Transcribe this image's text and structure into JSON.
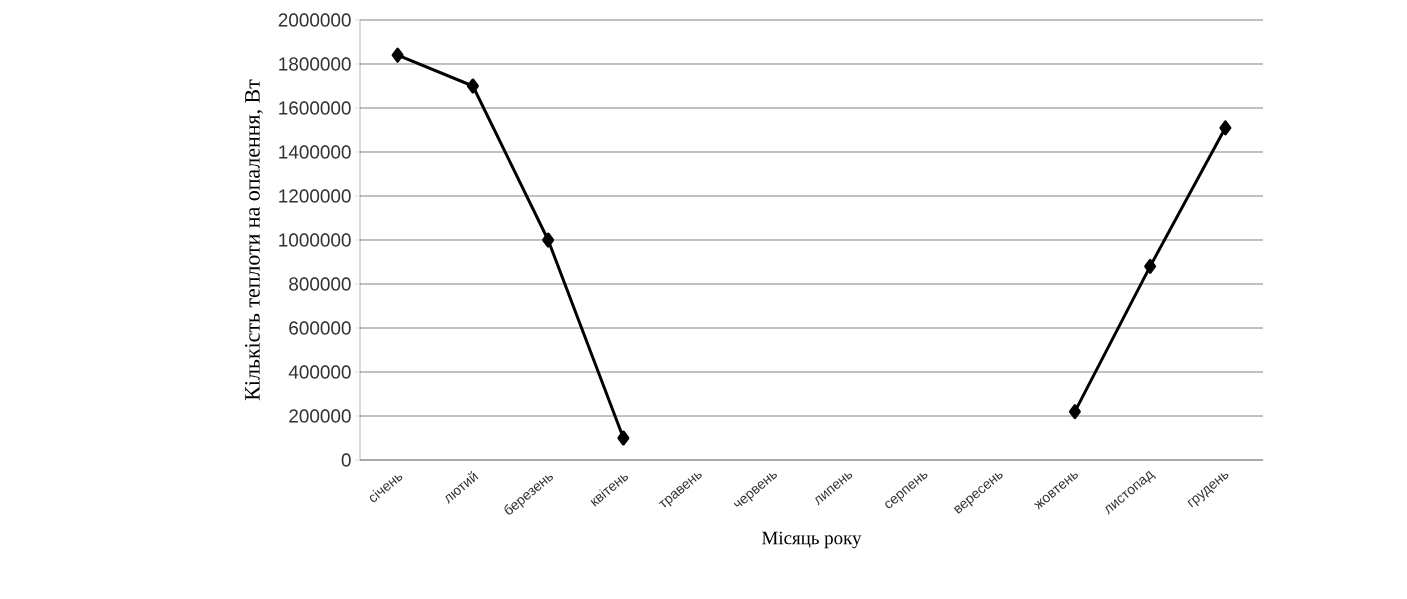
{
  "chart_data": {
    "type": "line",
    "xlabel": "Місяць року",
    "ylabel": "Кількість теплоти на опалення, Вт",
    "categories": [
      "січень",
      "лютий",
      "березень",
      "квітень",
      "травень",
      "червень",
      "липень",
      "серпень",
      "вересень",
      "жовтень",
      "листопад",
      "грудень"
    ],
    "series": [
      {
        "color": "#000000",
        "values": [
          1840000,
          1700000,
          1000000,
          100000,
          null,
          null,
          null,
          null,
          null,
          220000,
          880000,
          1510000
        ]
      }
    ],
    "ylim": [
      0,
      2000000
    ],
    "yticks": [
      0,
      200000,
      400000,
      600000,
      800000,
      1000000,
      1200000,
      1400000,
      1600000,
      1800000,
      2000000
    ],
    "grid": "y",
    "marker": "diamond",
    "line_style": "solid"
  }
}
